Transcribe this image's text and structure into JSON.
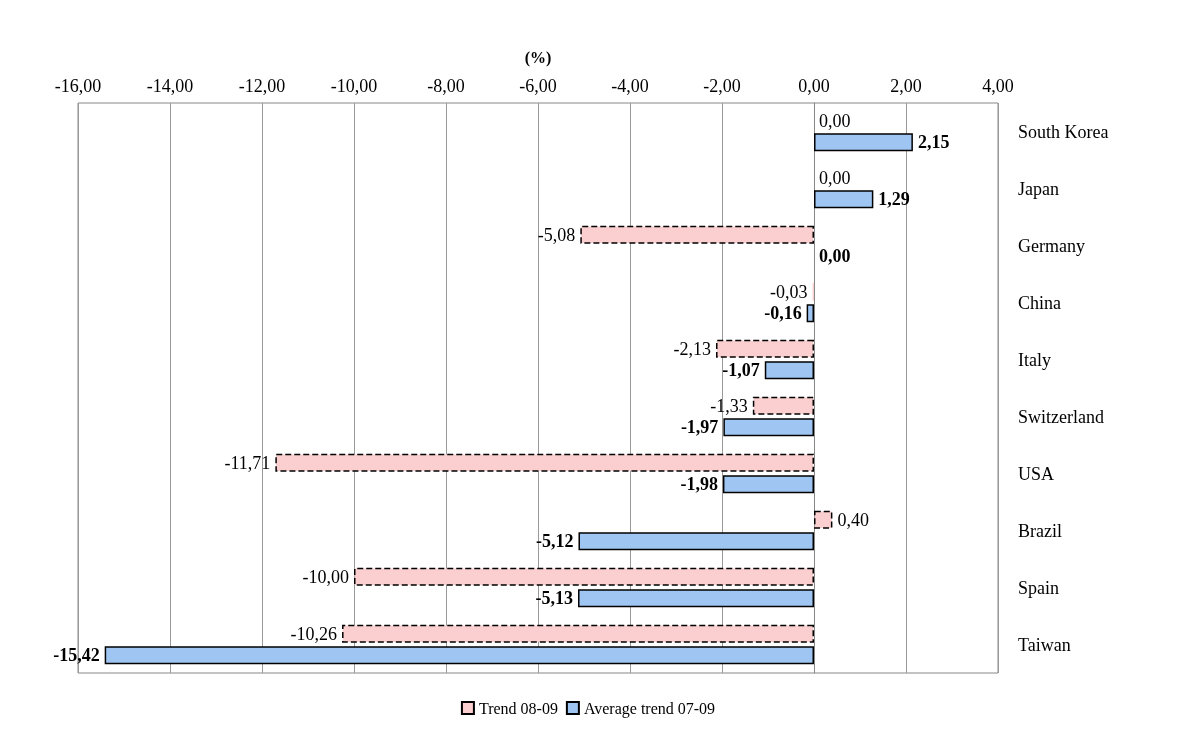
{
  "chart_data": {
    "type": "bar",
    "orientation": "horizontal",
    "xlabel": "(%)",
    "categories": [
      "South Korea",
      "Japan",
      "Germany",
      "China",
      "Italy",
      "Switzerland",
      "USA",
      "Brazil",
      "Spain",
      "Taiwan"
    ],
    "series": [
      {
        "name": "Trend 08-09",
        "color": "#fbcfcf",
        "line_style": "dashed",
        "values": [
          0,
          0,
          -5.08,
          -0.03,
          -2.13,
          -1.33,
          -11.71,
          0.4,
          -10,
          -10.26
        ],
        "value_labels": [
          "0,00",
          "0,00",
          "-5,08",
          "-0,03",
          "-2,13",
          "-1,33",
          "-11,71",
          "0,40",
          "-10,00",
          "-10,26"
        ]
      },
      {
        "name": "Average trend 07-09",
        "color": "#9fc6f2",
        "line_style": "solid",
        "values": [
          2.15,
          1.29,
          0,
          -0.16,
          -1.07,
          -1.97,
          -1.98,
          -5.12,
          -5.13,
          -15.42
        ],
        "value_labels": [
          "2,15",
          "1,29",
          "0,00",
          "-0,16",
          "-1,07",
          "-1,97",
          "-1,98",
          "-5,12",
          "-5,13",
          "-15,42"
        ]
      }
    ],
    "xlim": [
      -16,
      4
    ],
    "xticks": [
      {
        "value": -16,
        "label": "-16,00"
      },
      {
        "value": -14,
        "label": "-14,00"
      },
      {
        "value": -12,
        "label": "-12,00"
      },
      {
        "value": -10,
        "label": "-10,00"
      },
      {
        "value": -8,
        "label": "-8,00"
      },
      {
        "value": -6,
        "label": "-6,00"
      },
      {
        "value": -4,
        "label": "-4,00"
      },
      {
        "value": -2,
        "label": "-2,00"
      },
      {
        "value": 0,
        "label": "0,00"
      },
      {
        "value": 2,
        "label": "2,00"
      },
      {
        "value": 4,
        "label": "4,00"
      }
    ],
    "grid": "x",
    "legend": "bottom"
  }
}
